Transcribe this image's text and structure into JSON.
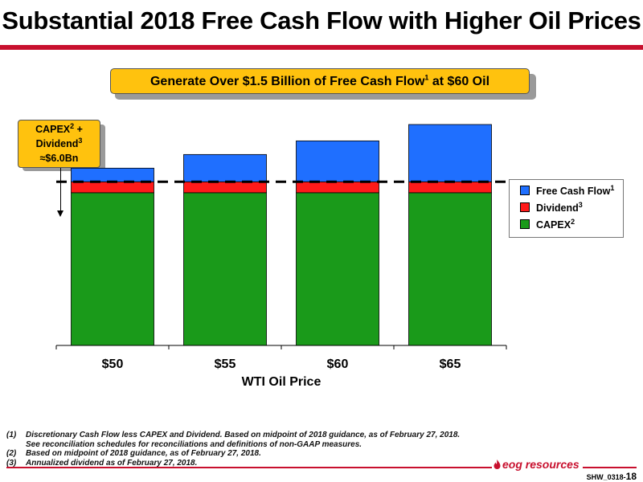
{
  "header": {
    "title": "Substantial 2018 Free Cash Flow with Higher Oil Prices"
  },
  "banner": {
    "text": "Generate Over $1.5 Billion of Free Cash Flow",
    "sup": "1",
    "suffix": " at $60 Oil"
  },
  "callout": {
    "line1": "CAPEX",
    "line1_sup": "2",
    "line1_suffix": " +",
    "line2": "Dividend",
    "line2_sup": "3",
    "line3": "≈$6.0Bn"
  },
  "legend": {
    "items": [
      {
        "label": "Free Cash Flow",
        "sup": "1",
        "color": "#1f6fff"
      },
      {
        "label": "Dividend",
        "sup": "3",
        "color": "#ff1a1a"
      },
      {
        "label": "CAPEX",
        "sup": "2",
        "color": "#1a9a1a"
      }
    ]
  },
  "chart_data": {
    "type": "bar",
    "stacked": true,
    "xlabel": "WTI Oil Price",
    "categories": [
      "$50",
      "$55",
      "$60",
      "$65"
    ],
    "series": [
      {
        "name": "CAPEX",
        "color": "#1a9a1a",
        "values": [
          5.6,
          5.6,
          5.6,
          5.6
        ]
      },
      {
        "name": "Dividend",
        "color": "#ff1a1a",
        "values": [
          0.4,
          0.4,
          0.4,
          0.4
        ]
      },
      {
        "name": "Free Cash Flow",
        "color": "#1f6fff",
        "values": [
          0.5,
          1.0,
          1.5,
          2.1
        ]
      }
    ],
    "reference_line": {
      "value": 6.0,
      "style": "dashed"
    },
    "ylim": [
      0,
      8.1
    ]
  },
  "footnotes": [
    {
      "num": "(1)",
      "text": "Discretionary Cash Flow less CAPEX and Dividend.  Based on midpoint of 2018 guidance, as of February 27, 2018.",
      "cont": "See reconciliation schedules for reconciliations and definitions of non-GAAP measures."
    },
    {
      "num": "(2)",
      "text": "Based on midpoint of 2018 guidance, as of February 27, 2018."
    },
    {
      "num": "(3)",
      "text": "Annualized dividend as of February 27, 2018."
    }
  ],
  "footer": {
    "logo_text": "eog resources",
    "slide_code": "SHW_0318-",
    "slide_number": "18"
  }
}
